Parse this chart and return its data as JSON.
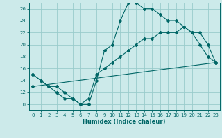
{
  "xlabel": "Humidex (Indice chaleur)",
  "bg_color": "#cceaea",
  "line_color": "#006666",
  "grid_color": "#99cccc",
  "xlim": [
    -0.5,
    23.5
  ],
  "ylim": [
    9.0,
    27.0
  ],
  "yticks": [
    10,
    12,
    14,
    16,
    18,
    20,
    22,
    24,
    26
  ],
  "xticks": [
    0,
    1,
    2,
    3,
    4,
    5,
    6,
    7,
    8,
    9,
    10,
    11,
    12,
    13,
    14,
    15,
    16,
    17,
    18,
    19,
    20,
    21,
    22,
    23
  ],
  "line1_x": [
    0,
    1,
    2,
    3,
    4,
    5,
    6,
    7,
    8,
    9,
    10,
    11,
    12,
    13,
    14,
    15,
    16,
    17,
    18,
    19,
    20,
    21,
    22,
    23
  ],
  "line1_y": [
    15,
    14,
    13,
    13,
    12,
    11,
    10,
    10,
    14,
    19,
    20,
    24,
    27,
    27,
    26,
    26,
    25,
    24,
    24,
    23,
    22,
    20,
    18,
    17
  ],
  "line2_x": [
    0,
    1,
    2,
    3,
    4,
    5,
    6,
    7,
    8,
    9,
    10,
    11,
    12,
    13,
    14,
    15,
    16,
    17,
    18,
    19,
    20,
    21,
    22,
    23
  ],
  "line2_y": [
    15,
    14,
    13,
    12,
    11,
    11,
    10,
    11,
    15,
    16,
    17,
    18,
    19,
    20,
    21,
    21,
    22,
    22,
    22,
    23,
    22,
    22,
    20,
    17
  ],
  "line3_x": [
    0,
    23
  ],
  "line3_y": [
    13,
    17
  ],
  "tick_fontsize": 5.0,
  "xlabel_fontsize": 6.0
}
